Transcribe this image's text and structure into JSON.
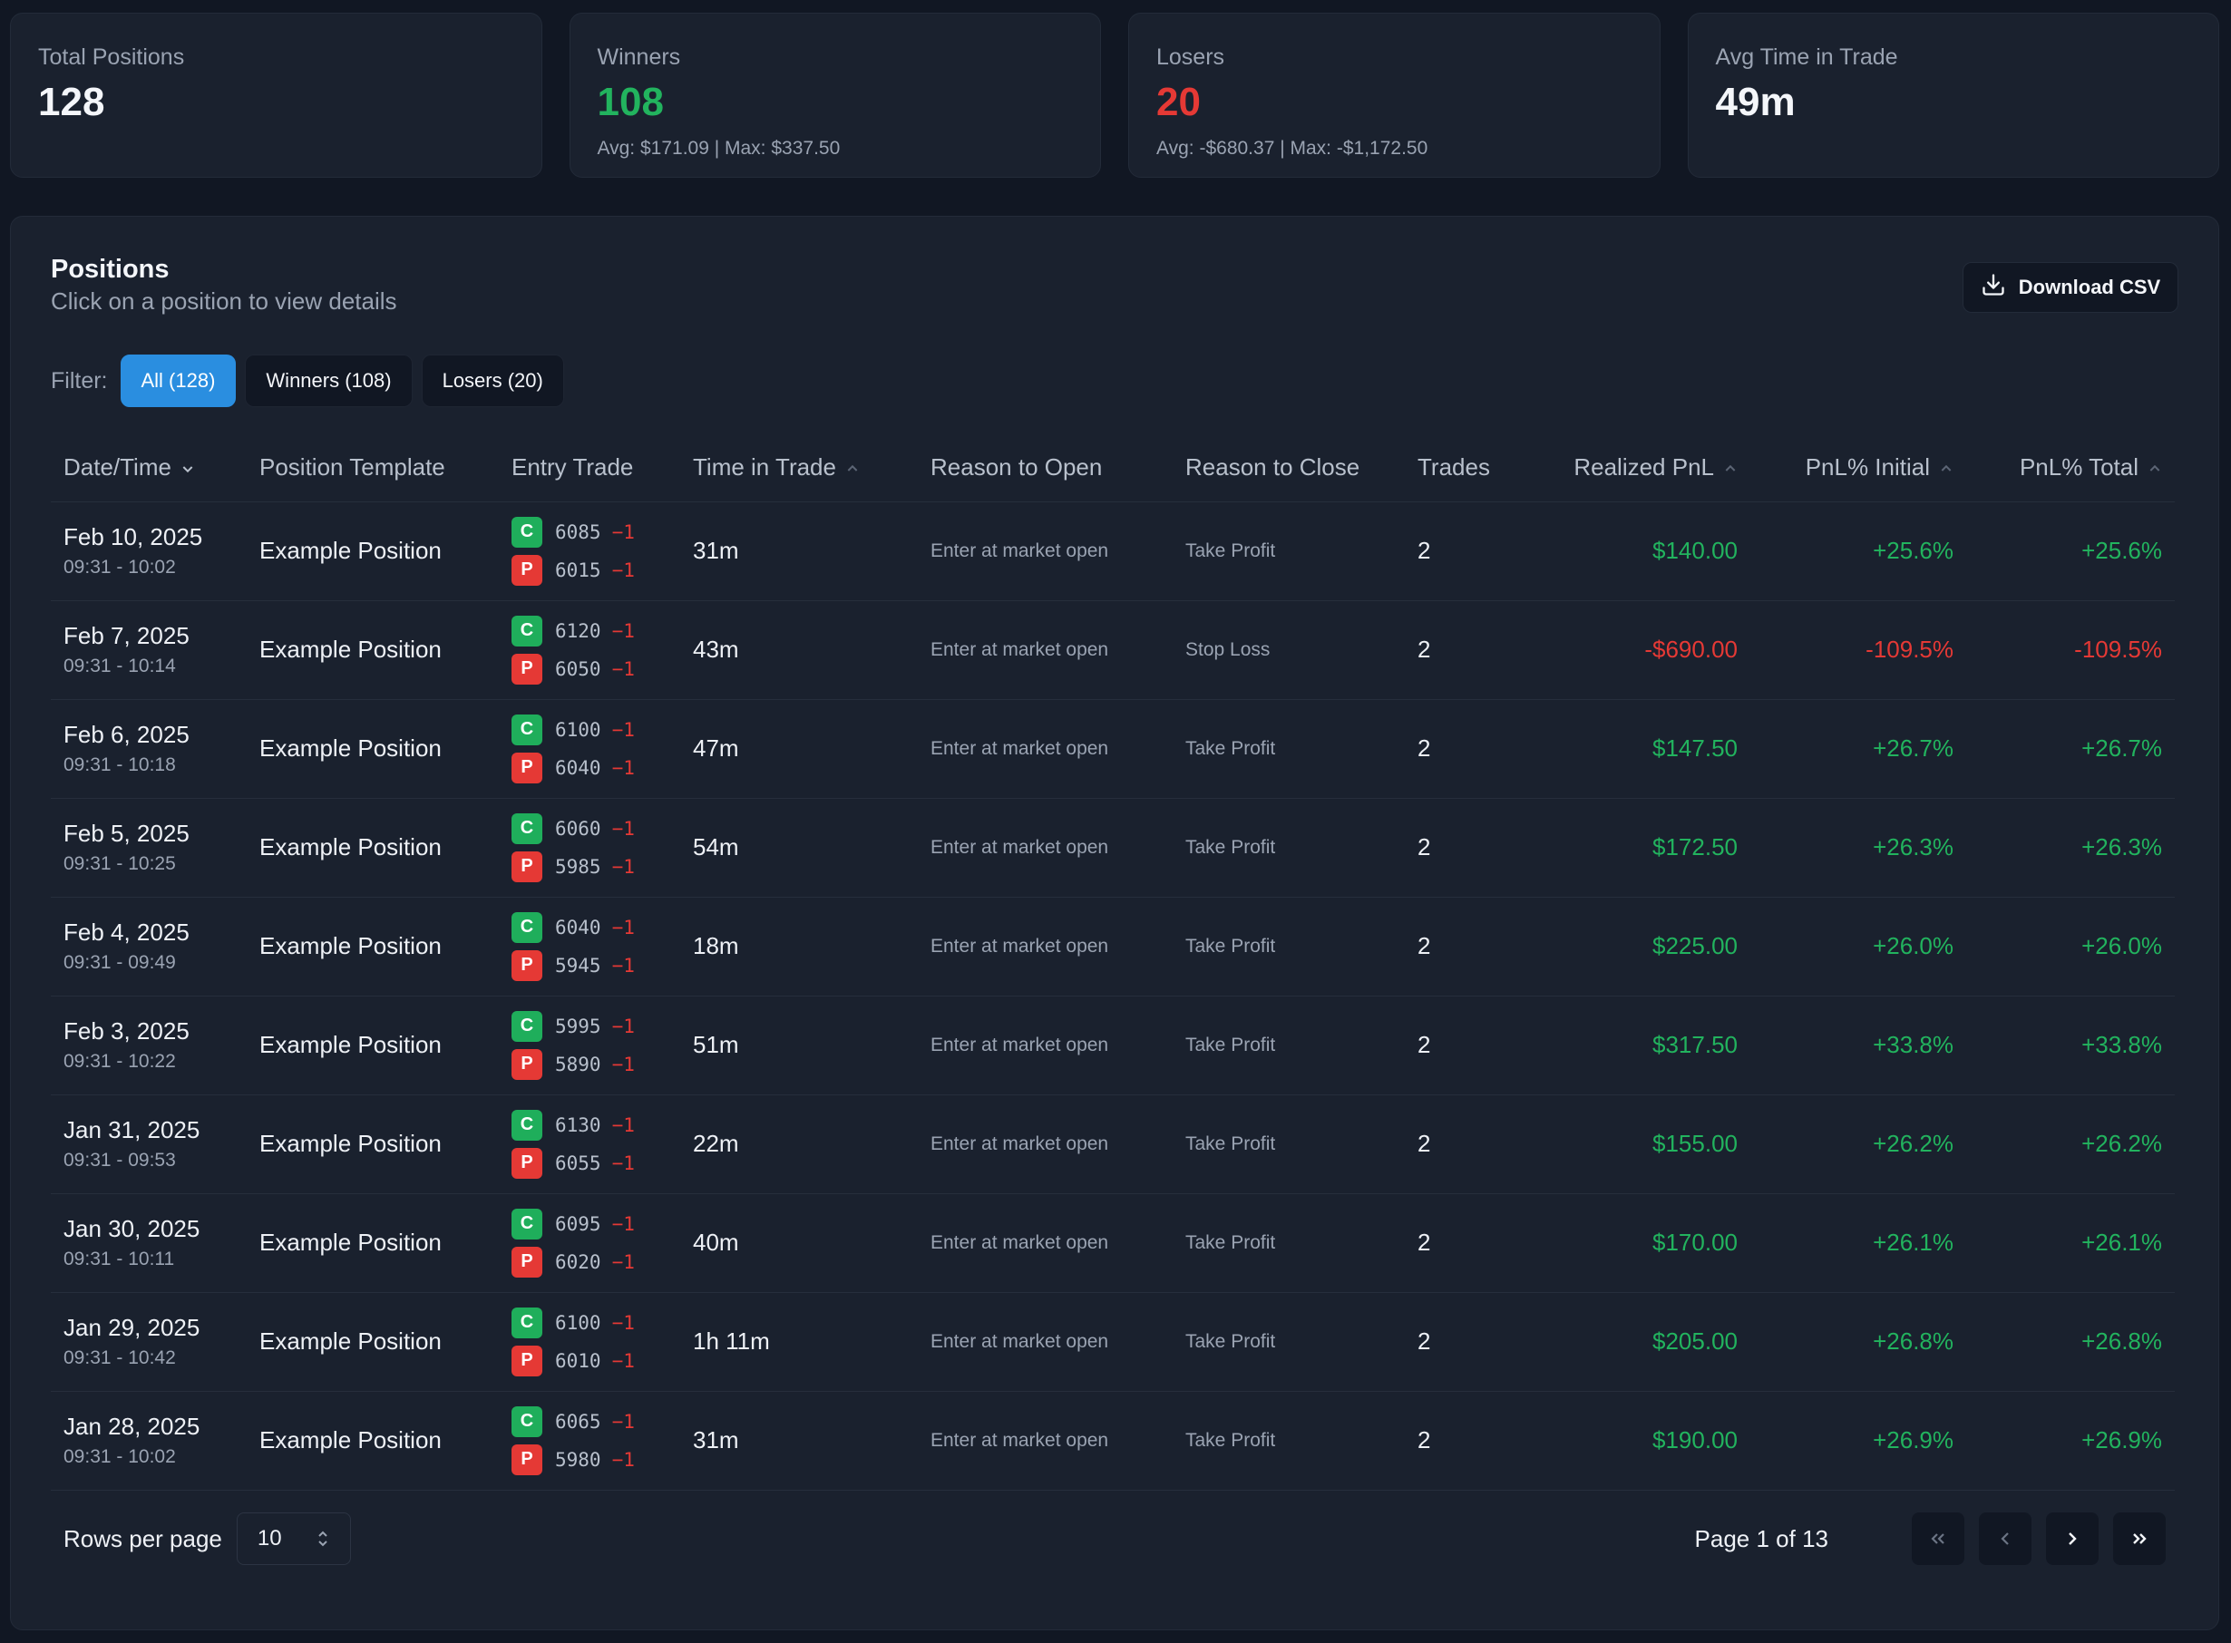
{
  "stats": [
    {
      "label": "Total Positions",
      "value": "128",
      "sub": "",
      "tone": "neutral"
    },
    {
      "label": "Winners",
      "value": "108",
      "sub": "Avg: $171.09 | Max: $337.50",
      "tone": "green"
    },
    {
      "label": "Losers",
      "value": "20",
      "sub": "Avg: -$680.37 | Max: -$1,172.50",
      "tone": "red"
    },
    {
      "label": "Avg Time in Trade",
      "value": "49m",
      "sub": "",
      "tone": "neutral"
    }
  ],
  "panel": {
    "title": "Positions",
    "subtitle": "Click on a position to view details",
    "download_label": "Download CSV",
    "filter_label": "Filter:",
    "filters": [
      {
        "label": "All (128)",
        "active": true
      },
      {
        "label": "Winners (108)",
        "active": false
      },
      {
        "label": "Losers (20)",
        "active": false
      }
    ]
  },
  "columns": {
    "date": "Date/Time",
    "template": "Position Template",
    "entry": "Entry Trade",
    "time_in_trade": "Time in Trade",
    "reason_open": "Reason to Open",
    "reason_close": "Reason to Close",
    "trades": "Trades",
    "pnl": "Realized PnL",
    "pnl_initial": "PnL% Initial",
    "pnl_total": "PnL% Total"
  },
  "rows": [
    {
      "date": "Feb 10, 2025",
      "time": "09:31 - 10:02",
      "template": "Example Position",
      "call_strike": "6085",
      "call_qty": "−1",
      "put_strike": "6015",
      "put_qty": "−1",
      "tit": "31m",
      "open": "Enter at market open",
      "close": "Take Profit",
      "trades": "2",
      "pnl": "$140.00",
      "pnl_initial": "+25.6%",
      "pnl_total": "+25.6%",
      "win": true
    },
    {
      "date": "Feb 7, 2025",
      "time": "09:31 - 10:14",
      "template": "Example Position",
      "call_strike": "6120",
      "call_qty": "−1",
      "put_strike": "6050",
      "put_qty": "−1",
      "tit": "43m",
      "open": "Enter at market open",
      "close": "Stop Loss",
      "trades": "2",
      "pnl": "-$690.00",
      "pnl_initial": "-109.5%",
      "pnl_total": "-109.5%",
      "win": false
    },
    {
      "date": "Feb 6, 2025",
      "time": "09:31 - 10:18",
      "template": "Example Position",
      "call_strike": "6100",
      "call_qty": "−1",
      "put_strike": "6040",
      "put_qty": "−1",
      "tit": "47m",
      "open": "Enter at market open",
      "close": "Take Profit",
      "trades": "2",
      "pnl": "$147.50",
      "pnl_initial": "+26.7%",
      "pnl_total": "+26.7%",
      "win": true
    },
    {
      "date": "Feb 5, 2025",
      "time": "09:31 - 10:25",
      "template": "Example Position",
      "call_strike": "6060",
      "call_qty": "−1",
      "put_strike": "5985",
      "put_qty": "−1",
      "tit": "54m",
      "open": "Enter at market open",
      "close": "Take Profit",
      "trades": "2",
      "pnl": "$172.50",
      "pnl_initial": "+26.3%",
      "pnl_total": "+26.3%",
      "win": true
    },
    {
      "date": "Feb 4, 2025",
      "time": "09:31 - 09:49",
      "template": "Example Position",
      "call_strike": "6040",
      "call_qty": "−1",
      "put_strike": "5945",
      "put_qty": "−1",
      "tit": "18m",
      "open": "Enter at market open",
      "close": "Take Profit",
      "trades": "2",
      "pnl": "$225.00",
      "pnl_initial": "+26.0%",
      "pnl_total": "+26.0%",
      "win": true
    },
    {
      "date": "Feb 3, 2025",
      "time": "09:31 - 10:22",
      "template": "Example Position",
      "call_strike": "5995",
      "call_qty": "−1",
      "put_strike": "5890",
      "put_qty": "−1",
      "tit": "51m",
      "open": "Enter at market open",
      "close": "Take Profit",
      "trades": "2",
      "pnl": "$317.50",
      "pnl_initial": "+33.8%",
      "pnl_total": "+33.8%",
      "win": true
    },
    {
      "date": "Jan 31, 2025",
      "time": "09:31 - 09:53",
      "template": "Example Position",
      "call_strike": "6130",
      "call_qty": "−1",
      "put_strike": "6055",
      "put_qty": "−1",
      "tit": "22m",
      "open": "Enter at market open",
      "close": "Take Profit",
      "trades": "2",
      "pnl": "$155.00",
      "pnl_initial": "+26.2%",
      "pnl_total": "+26.2%",
      "win": true
    },
    {
      "date": "Jan 30, 2025",
      "time": "09:31 - 10:11",
      "template": "Example Position",
      "call_strike": "6095",
      "call_qty": "−1",
      "put_strike": "6020",
      "put_qty": "−1",
      "tit": "40m",
      "open": "Enter at market open",
      "close": "Take Profit",
      "trades": "2",
      "pnl": "$170.00",
      "pnl_initial": "+26.1%",
      "pnl_total": "+26.1%",
      "win": true
    },
    {
      "date": "Jan 29, 2025",
      "time": "09:31 - 10:42",
      "template": "Example Position",
      "call_strike": "6100",
      "call_qty": "−1",
      "put_strike": "6010",
      "put_qty": "−1",
      "tit": "1h 11m",
      "open": "Enter at market open",
      "close": "Take Profit",
      "trades": "2",
      "pnl": "$205.00",
      "pnl_initial": "+26.8%",
      "pnl_total": "+26.8%",
      "win": true
    },
    {
      "date": "Jan 28, 2025",
      "time": "09:31 - 10:02",
      "template": "Example Position",
      "call_strike": "6065",
      "call_qty": "−1",
      "put_strike": "5980",
      "put_qty": "−1",
      "tit": "31m",
      "open": "Enter at market open",
      "close": "Take Profit",
      "trades": "2",
      "pnl": "$190.00",
      "pnl_initial": "+26.9%",
      "pnl_total": "+26.9%",
      "win": true
    }
  ],
  "badges": {
    "call": "C",
    "put": "P"
  },
  "footer": {
    "rows_per_page_label": "Rows per page",
    "rows_per_page": "10",
    "page_info": "Page 1 of 13"
  },
  "icons": {
    "download": "download-icon",
    "first": "chevrons-left-icon",
    "prev": "chevron-left-icon",
    "next": "chevron-right-icon",
    "last": "chevrons-right-icon"
  },
  "colors": {
    "accent": "#2a8ee0",
    "positive": "#22b35e",
    "negative": "#e53935"
  }
}
